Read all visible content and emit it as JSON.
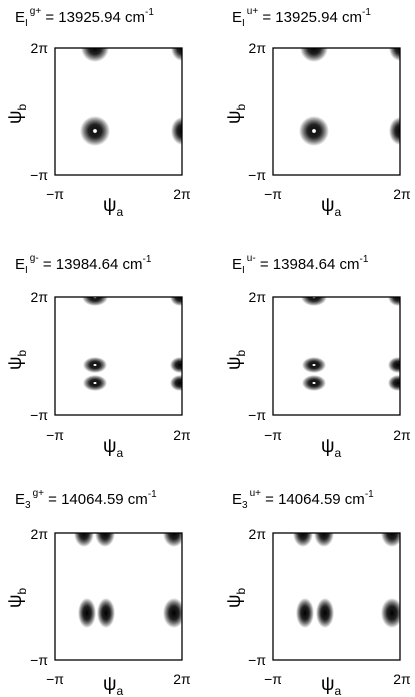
{
  "figure": {
    "panels": [
      {
        "id": "p1",
        "title": {
          "base": "E",
          "sub": "I",
          "sup": "g+",
          "rest": " = 13925.94  cm",
          "exp": "-1"
        },
        "xlabel": {
          "base": "ψ",
          "sub": "a"
        },
        "ylabel": {
          "base": "ψ",
          "sub": "b"
        },
        "xticks": [
          "−π",
          "2π"
        ],
        "yticks": [
          "−π",
          "2π"
        ]
      },
      {
        "id": "p2",
        "title": {
          "base": "E",
          "sub": "I",
          "sup": "u+",
          "rest": " = 13925.94  cm",
          "exp": "-1"
        },
        "xlabel": {
          "base": "ψ",
          "sub": "a"
        },
        "ylabel": {
          "base": "ψ",
          "sub": "b"
        },
        "xticks": [
          "−π",
          "2π"
        ],
        "yticks": [
          "−π",
          "2π"
        ]
      },
      {
        "id": "p3",
        "title": {
          "base": "E",
          "sub": "I",
          "sup": "g-",
          "rest": " = 13984.64  cm",
          "exp": "-1"
        },
        "xlabel": {
          "base": "ψ",
          "sub": "a"
        },
        "ylabel": {
          "base": "ψ",
          "sub": "b"
        },
        "xticks": [
          "−π",
          "2π"
        ],
        "yticks": [
          "−π",
          "2π"
        ]
      },
      {
        "id": "p4",
        "title": {
          "base": "E",
          "sub": "I",
          "sup": "u-",
          "rest": " = 13984.64  cm",
          "exp": "-1"
        },
        "xlabel": {
          "base": "ψ",
          "sub": "a"
        },
        "ylabel": {
          "base": "ψ",
          "sub": "b"
        },
        "xticks": [
          "−π",
          "2π"
        ],
        "yticks": [
          "−π",
          "2π"
        ]
      },
      {
        "id": "p5",
        "title": {
          "base": "E",
          "sub": "3",
          "sup": "g+",
          "rest": " = 14064.59  cm",
          "exp": "-1"
        },
        "xlabel": {
          "base": "ψ",
          "sub": "a"
        },
        "ylabel": {
          "base": "ψ",
          "sub": "b"
        },
        "xticks": [
          "−π",
          "2π"
        ],
        "yticks": [
          "−π",
          "2π"
        ]
      },
      {
        "id": "p6",
        "title": {
          "base": "E",
          "sub": "3",
          "sup": "u+",
          "rest": " = 14064.59  cm",
          "exp": "-1"
        },
        "xlabel": {
          "base": "ψ",
          "sub": "a"
        },
        "ylabel": {
          "base": "ψ",
          "sub": "b"
        },
        "xticks": [
          "−π",
          "2π"
        ],
        "yticks": [
          "−π",
          "2π"
        ]
      }
    ]
  }
}
